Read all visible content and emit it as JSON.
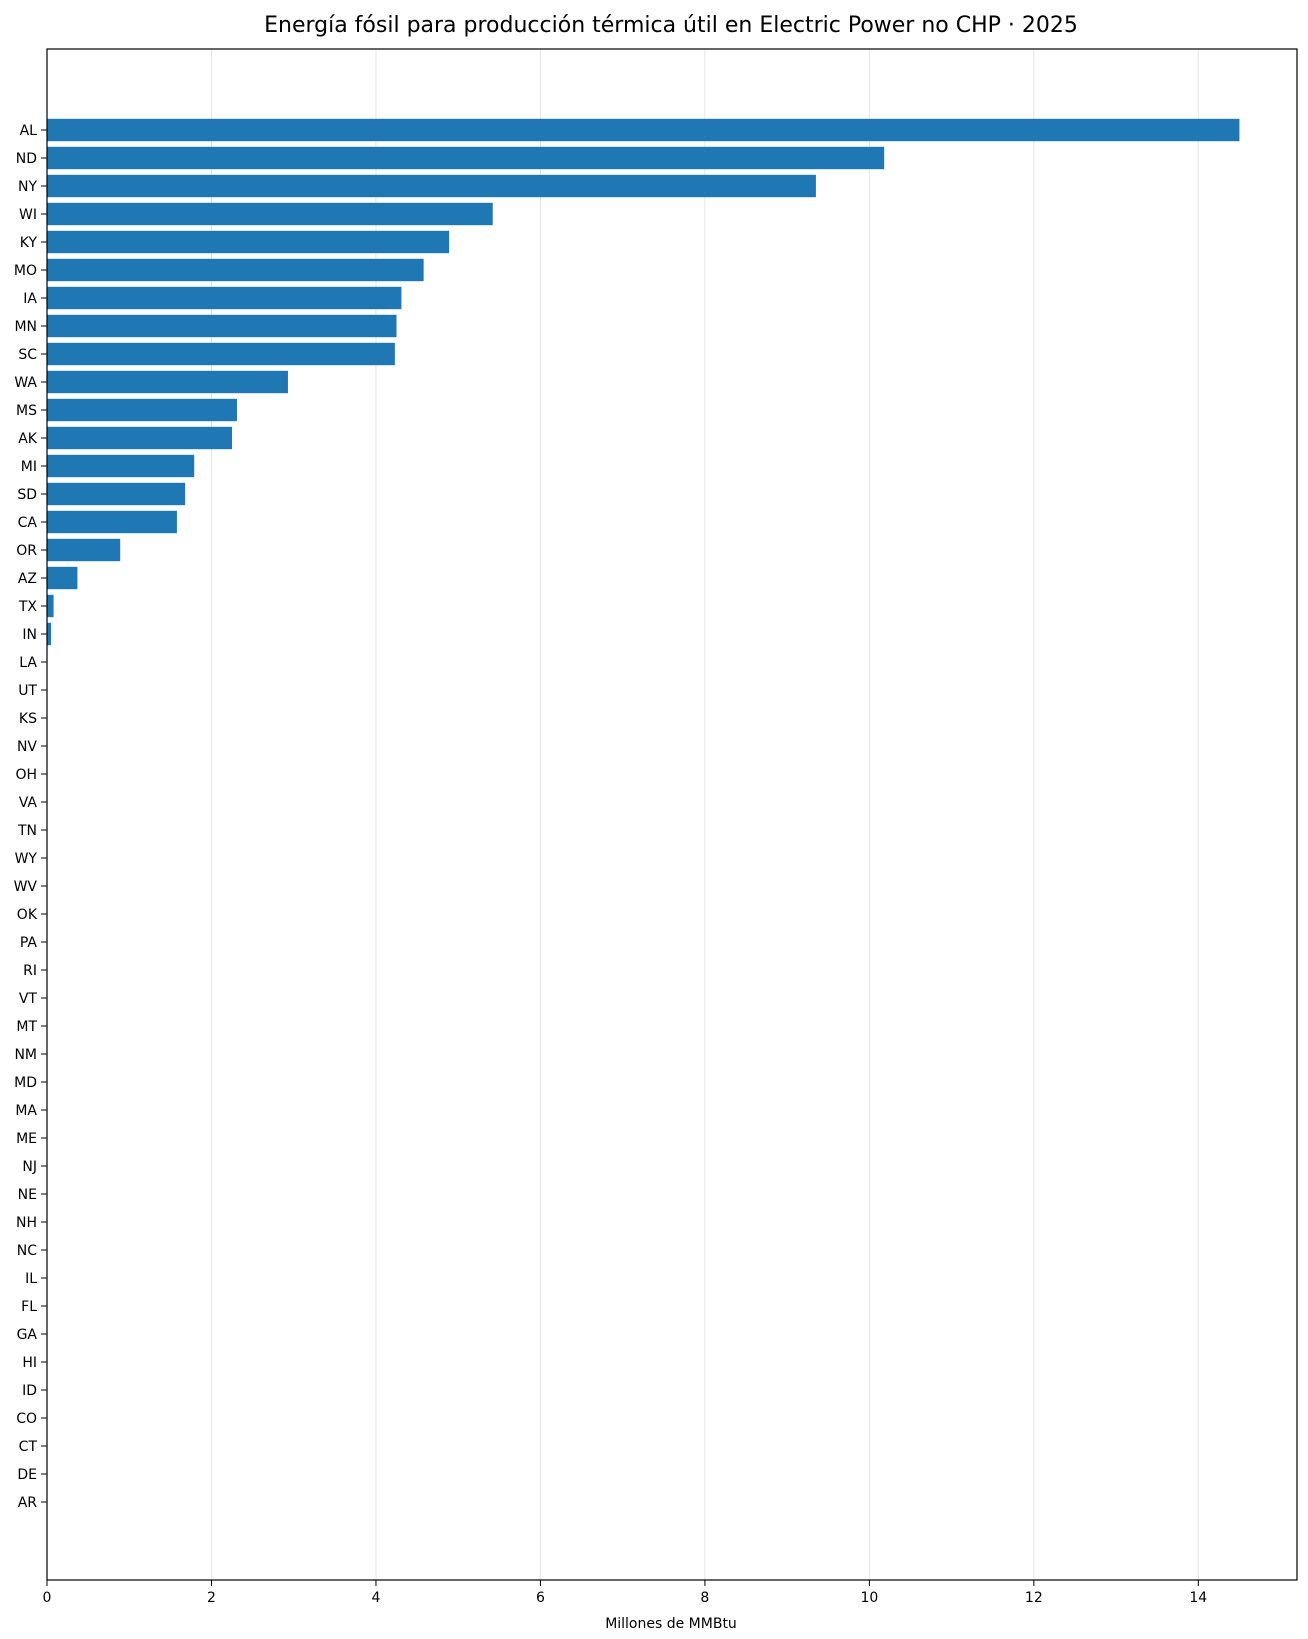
{
  "chart_data": {
    "type": "bar",
    "orientation": "horizontal",
    "title": "Energía fósil para producción térmica útil en Electric Power no CHP · 2025",
    "xlabel": "Millones de MMBtu",
    "ylabel": "",
    "xlim": [
      0,
      15.2
    ],
    "xticks": [
      0,
      2,
      4,
      6,
      8,
      10,
      12,
      14
    ],
    "grid": "vertical",
    "bar_color": "#1f77b4",
    "categories": [
      "AL",
      "ND",
      "NY",
      "WI",
      "KY",
      "MO",
      "IA",
      "MN",
      "SC",
      "WA",
      "MS",
      "AK",
      "MI",
      "SD",
      "CA",
      "OR",
      "AZ",
      "TX",
      "IN",
      "LA",
      "UT",
      "KS",
      "NV",
      "OH",
      "VA",
      "TN",
      "WY",
      "WV",
      "OK",
      "PA",
      "RI",
      "VT",
      "MT",
      "NM",
      "MD",
      "MA",
      "ME",
      "NJ",
      "NE",
      "NH",
      "NC",
      "IL",
      "FL",
      "GA",
      "HI",
      "ID",
      "CO",
      "CT",
      "DE",
      "AR"
    ],
    "values": [
      14.5,
      10.18,
      9.35,
      5.42,
      4.89,
      4.58,
      4.31,
      4.25,
      4.23,
      2.93,
      2.31,
      2.25,
      1.79,
      1.68,
      1.58,
      0.89,
      0.37,
      0.08,
      0.05,
      0,
      0,
      0,
      0,
      0,
      0,
      0,
      0,
      0,
      0,
      0,
      0,
      0,
      0,
      0,
      0,
      0,
      0,
      0,
      0,
      0,
      0,
      0,
      0,
      0,
      0,
      0,
      0,
      0,
      0,
      0
    ]
  }
}
